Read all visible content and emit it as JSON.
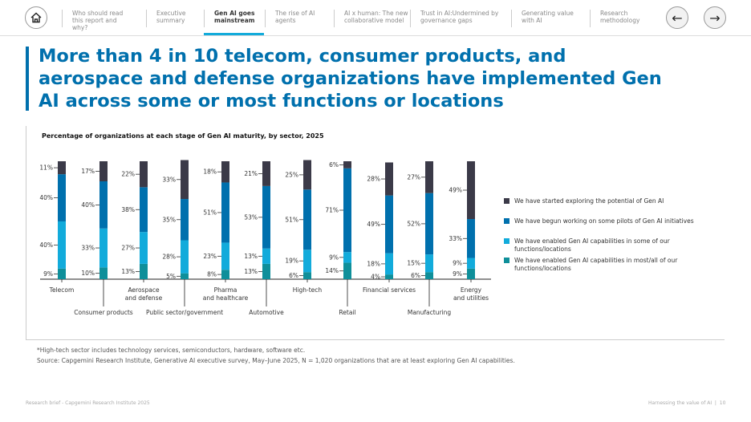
{
  "nav": {
    "items": [
      {
        "label": "Who should read this report and why?",
        "active": false
      },
      {
        "label": "Executive summary",
        "active": false
      },
      {
        "label": "Gen AI goes mainstream",
        "active": true
      },
      {
        "label": "The rise of AI agents",
        "active": false
      },
      {
        "label": "AI x human: The new collaborative model",
        "active": false
      },
      {
        "label": "Trust in AI:Undermined by governance gaps",
        "active": false
      },
      {
        "label": "Generating value with AI",
        "active": false
      },
      {
        "label": "Research methodology",
        "active": false
      }
    ],
    "prev_icon": "arrow-left-icon",
    "next_icon": "arrow-right-icon",
    "home_icon": "home-icon"
  },
  "title": "More than 4 in 10 telecom, consumer products, and aerospace and defense organizations have implemented Gen AI across some or most functions or locations",
  "chart_data": {
    "type": "bar",
    "stacked": true,
    "title": "Percentage of organizations at each stage of Gen AI maturity, by sector, 2025",
    "categories": [
      "Telecom",
      "Consumer products",
      "Aerospace and defense",
      "Public sector/government",
      "Pharma and healthcare",
      "Automotive",
      "High-tech",
      "Retail",
      "Financial services",
      "Manufacturing",
      "Energy and utilities"
    ],
    "series": [
      {
        "name": "We have enabled Gen AI capabilities in most/all of our functions/locations",
        "color": "#0f8f9a",
        "values": [
          9,
          10,
          13,
          5,
          8,
          13,
          6,
          14,
          4,
          6,
          9
        ]
      },
      {
        "name": "We have enabled Gen AI capabilities in some of our functions/locations",
        "color": "#12abdb",
        "values": [
          40,
          33,
          27,
          28,
          23,
          13,
          19,
          9,
          18,
          15,
          9
        ]
      },
      {
        "name": "We have begun working on some pilots of Gen AI initiatives",
        "color": "#0070ad",
        "values": [
          40,
          40,
          38,
          35,
          51,
          53,
          51,
          71,
          49,
          52,
          33
        ]
      },
      {
        "name": "We have started exploring the potential of Gen AI",
        "color": "#3b3a48",
        "values": [
          11,
          17,
          22,
          33,
          18,
          21,
          25,
          6,
          28,
          27,
          49
        ]
      }
    ],
    "ylim": [
      0,
      100
    ],
    "legend": "right",
    "grid": false
  },
  "notes": {
    "footnote": "*High-tech sector includes technology services, semiconductors, hardware, software etc.",
    "source": "Source: Capgemini Research Institute, Generative AI executive survey, May–June 2025, N = 1,020 organizations that are at least exploring Gen AI capabilities."
  },
  "footer": {
    "left": "Research brief - Capgemini Research Institute 2025",
    "right": "Harnessing the value of AI",
    "page": "10"
  }
}
